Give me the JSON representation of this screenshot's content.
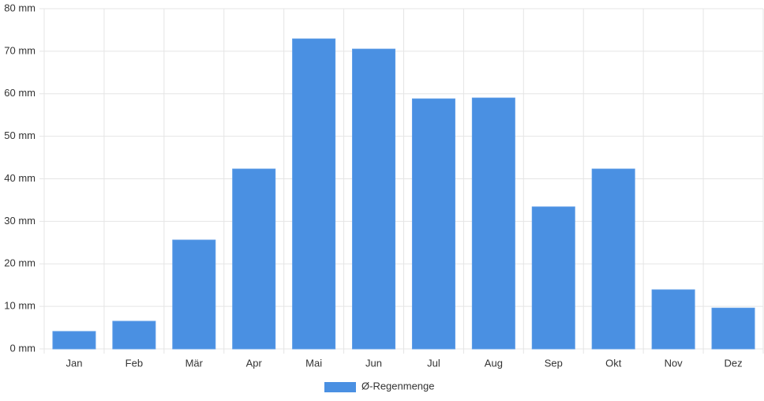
{
  "chart_data": {
    "type": "bar",
    "categories": [
      "Jan",
      "Feb",
      "Mär",
      "Apr",
      "Mai",
      "Jun",
      "Jul",
      "Aug",
      "Sep",
      "Okt",
      "Nov",
      "Dez"
    ],
    "series": [
      {
        "name": "Ø-Regenmenge",
        "color": "#4a90e2",
        "values": [
          4.1,
          6.5,
          25.6,
          42.3,
          72.9,
          70.5,
          58.8,
          59.0,
          33.4,
          42.3,
          13.9,
          9.6
        ]
      }
    ],
    "ylim": [
      0,
      80
    ],
    "yticks": [
      {
        "value": 0,
        "label": "0 mm"
      },
      {
        "value": 10,
        "label": "10 mm"
      },
      {
        "value": 20,
        "label": "20 mm"
      },
      {
        "value": 30,
        "label": "30 mm"
      },
      {
        "value": 40,
        "label": "40 mm"
      },
      {
        "value": 50,
        "label": "50 mm"
      },
      {
        "value": 60,
        "label": "60 mm"
      },
      {
        "value": 70,
        "label": "70 mm"
      },
      {
        "value": 80,
        "label": "80 mm"
      }
    ],
    "grid": true,
    "legend": "bottom"
  }
}
